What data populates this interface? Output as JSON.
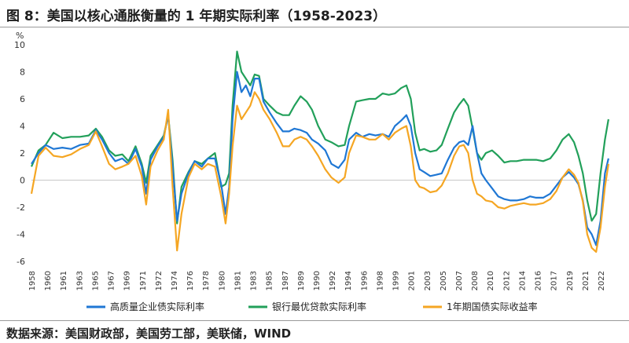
{
  "title": "图 8：美国以核心通胀衡量的 1 年期实际利率（1958-2023）",
  "source": "数据来源：美国财政部，美国劳工部，美联储，WIND",
  "chart_data": {
    "type": "line",
    "ylabel": "%",
    "ylim": [
      -6,
      10
    ],
    "yticks": [
      10,
      8,
      6,
      4,
      2,
      0,
      -2,
      -4,
      -6
    ],
    "xlim": [
      1958,
      2023.5
    ],
    "xticks": [
      "1958",
      "1960",
      "1961",
      "1963",
      "1965",
      "1967",
      "1969",
      "1971",
      "1972",
      "1974",
      "1976",
      "1978",
      "1980",
      "1981",
      "1983",
      "1985",
      "1987",
      "1989",
      "1990",
      "1992",
      "1994",
      "1996",
      "1998",
      "1999",
      "2001",
      "2003",
      "2005",
      "2007",
      "2008",
      "2010",
      "2012",
      "2014",
      "2016",
      "2017",
      "2019",
      "2021",
      "2022"
    ],
    "legend_position": "bottom",
    "series": [
      {
        "name": "高质量企业债实际利率",
        "color": "#1f77d4",
        "points": [
          [
            1958.0,
            1.2
          ],
          [
            1958.8,
            2.0
          ],
          [
            1959.6,
            2.6
          ],
          [
            1960.5,
            2.3
          ],
          [
            1961.5,
            2.4
          ],
          [
            1962.5,
            2.3
          ],
          [
            1963.5,
            2.6
          ],
          [
            1964.5,
            2.7
          ],
          [
            1965.3,
            3.7
          ],
          [
            1966.0,
            3.0
          ],
          [
            1966.8,
            2.0
          ],
          [
            1967.5,
            1.4
          ],
          [
            1968.3,
            1.6
          ],
          [
            1969.0,
            1.2
          ],
          [
            1969.8,
            2.3
          ],
          [
            1970.5,
            1.0
          ],
          [
            1971.0,
            -1.0
          ],
          [
            1971.5,
            1.5
          ],
          [
            1972.3,
            2.5
          ],
          [
            1973.0,
            3.2
          ],
          [
            1973.5,
            4.8
          ],
          [
            1974.0,
            1.0
          ],
          [
            1974.5,
            -3.0
          ],
          [
            1975.0,
            -1.0
          ],
          [
            1975.8,
            0.5
          ],
          [
            1976.5,
            1.4
          ],
          [
            1977.3,
            1.0
          ],
          [
            1978.0,
            1.6
          ],
          [
            1978.8,
            1.6
          ],
          [
            1979.5,
            -0.3
          ],
          [
            1980.0,
            -2.5
          ],
          [
            1980.4,
            -0.5
          ],
          [
            1980.8,
            4.5
          ],
          [
            1981.3,
            8.0
          ],
          [
            1981.8,
            6.5
          ],
          [
            1982.3,
            7.0
          ],
          [
            1982.8,
            6.2
          ],
          [
            1983.3,
            7.5
          ],
          [
            1983.8,
            7.5
          ],
          [
            1984.3,
            5.8
          ],
          [
            1985.0,
            5.0
          ],
          [
            1985.8,
            4.2
          ],
          [
            1986.5,
            3.6
          ],
          [
            1987.2,
            3.6
          ],
          [
            1987.8,
            3.8
          ],
          [
            1988.5,
            3.7
          ],
          [
            1989.2,
            3.5
          ],
          [
            1989.8,
            3.0
          ],
          [
            1990.5,
            2.7
          ],
          [
            1991.3,
            2.2
          ],
          [
            1992.0,
            1.2
          ],
          [
            1992.8,
            0.9
          ],
          [
            1993.5,
            1.5
          ],
          [
            1994.0,
            3.0
          ],
          [
            1994.8,
            3.5
          ],
          [
            1995.5,
            3.2
          ],
          [
            1996.3,
            3.4
          ],
          [
            1997.0,
            3.3
          ],
          [
            1997.8,
            3.4
          ],
          [
            1998.5,
            3.2
          ],
          [
            1999.2,
            4.0
          ],
          [
            1999.9,
            4.4
          ],
          [
            2000.5,
            4.8
          ],
          [
            2001.0,
            4.0
          ],
          [
            2001.5,
            2.0
          ],
          [
            2002.0,
            0.8
          ],
          [
            2002.5,
            0.6
          ],
          [
            2003.2,
            0.3
          ],
          [
            2003.9,
            0.4
          ],
          [
            2004.5,
            0.5
          ],
          [
            2005.2,
            1.5
          ],
          [
            2005.9,
            2.4
          ],
          [
            2006.5,
            2.8
          ],
          [
            2007.0,
            2.9
          ],
          [
            2007.5,
            2.6
          ],
          [
            2008.0,
            4.0
          ],
          [
            2008.5,
            2.0
          ],
          [
            2009.0,
            0.5
          ],
          [
            2009.5,
            0.0
          ],
          [
            2010.2,
            -0.6
          ],
          [
            2010.9,
            -1.2
          ],
          [
            2011.6,
            -1.4
          ],
          [
            2012.3,
            -1.5
          ],
          [
            2013.0,
            -1.5
          ],
          [
            2013.8,
            -1.4
          ],
          [
            2014.5,
            -1.2
          ],
          [
            2015.2,
            -1.3
          ],
          [
            2016.0,
            -1.3
          ],
          [
            2016.8,
            -1.0
          ],
          [
            2017.5,
            -0.4
          ],
          [
            2018.2,
            0.2
          ],
          [
            2018.9,
            0.6
          ],
          [
            2019.5,
            0.2
          ],
          [
            2020.0,
            -0.3
          ],
          [
            2020.5,
            -1.5
          ],
          [
            2021.0,
            -3.5
          ],
          [
            2021.5,
            -4.0
          ],
          [
            2022.0,
            -4.8
          ],
          [
            2022.5,
            -3.0
          ],
          [
            2023.0,
            0.5
          ],
          [
            2023.4,
            1.6
          ]
        ]
      },
      {
        "name": "银行最优贷款实际利率",
        "color": "#22a05a",
        "points": [
          [
            1958.0,
            1.0
          ],
          [
            1958.8,
            2.2
          ],
          [
            1959.6,
            2.6
          ],
          [
            1960.5,
            3.5
          ],
          [
            1961.5,
            3.1
          ],
          [
            1962.5,
            3.2
          ],
          [
            1963.5,
            3.2
          ],
          [
            1964.5,
            3.3
          ],
          [
            1965.3,
            3.8
          ],
          [
            1966.0,
            3.2
          ],
          [
            1966.8,
            2.2
          ],
          [
            1967.5,
            1.8
          ],
          [
            1968.3,
            1.9
          ],
          [
            1969.0,
            1.4
          ],
          [
            1969.8,
            2.5
          ],
          [
            1970.5,
            1.2
          ],
          [
            1971.0,
            -0.2
          ],
          [
            1971.5,
            1.8
          ],
          [
            1972.3,
            2.6
          ],
          [
            1973.0,
            3.3
          ],
          [
            1973.5,
            4.8
          ],
          [
            1974.0,
            1.5
          ],
          [
            1974.5,
            -3.2
          ],
          [
            1975.0,
            -0.5
          ],
          [
            1975.8,
            0.6
          ],
          [
            1976.5,
            1.4
          ],
          [
            1977.3,
            1.2
          ],
          [
            1978.0,
            1.6
          ],
          [
            1978.8,
            2.0
          ],
          [
            1979.5,
            -0.5
          ],
          [
            1980.0,
            -0.3
          ],
          [
            1980.4,
            0.5
          ],
          [
            1980.8,
            5.5
          ],
          [
            1981.3,
            9.5
          ],
          [
            1981.8,
            8.0
          ],
          [
            1982.3,
            7.5
          ],
          [
            1982.8,
            7.0
          ],
          [
            1983.3,
            7.8
          ],
          [
            1983.8,
            7.7
          ],
          [
            1984.3,
            6.0
          ],
          [
            1985.0,
            5.5
          ],
          [
            1985.8,
            5.0
          ],
          [
            1986.5,
            4.8
          ],
          [
            1987.2,
            4.8
          ],
          [
            1987.8,
            5.5
          ],
          [
            1988.5,
            6.2
          ],
          [
            1989.2,
            5.8
          ],
          [
            1989.8,
            5.2
          ],
          [
            1990.5,
            4.0
          ],
          [
            1991.3,
            3.0
          ],
          [
            1992.0,
            2.8
          ],
          [
            1992.8,
            2.5
          ],
          [
            1993.5,
            2.6
          ],
          [
            1994.0,
            4.0
          ],
          [
            1994.8,
            5.8
          ],
          [
            1995.5,
            5.9
          ],
          [
            1996.3,
            6.0
          ],
          [
            1997.0,
            6.0
          ],
          [
            1997.8,
            6.4
          ],
          [
            1998.5,
            6.3
          ],
          [
            1999.2,
            6.4
          ],
          [
            1999.9,
            6.8
          ],
          [
            2000.5,
            7.0
          ],
          [
            2001.0,
            6.0
          ],
          [
            2001.5,
            3.5
          ],
          [
            2002.0,
            2.2
          ],
          [
            2002.5,
            2.3
          ],
          [
            2003.2,
            2.1
          ],
          [
            2003.9,
            2.2
          ],
          [
            2004.5,
            2.6
          ],
          [
            2005.2,
            3.8
          ],
          [
            2005.9,
            5.0
          ],
          [
            2006.5,
            5.6
          ],
          [
            2007.0,
            6.0
          ],
          [
            2007.5,
            5.5
          ],
          [
            2008.0,
            3.8
          ],
          [
            2008.5,
            2.0
          ],
          [
            2009.0,
            1.5
          ],
          [
            2009.5,
            2.0
          ],
          [
            2010.2,
            2.2
          ],
          [
            2010.9,
            1.8
          ],
          [
            2011.6,
            1.3
          ],
          [
            2012.3,
            1.4
          ],
          [
            2013.0,
            1.4
          ],
          [
            2013.8,
            1.5
          ],
          [
            2014.5,
            1.5
          ],
          [
            2015.2,
            1.5
          ],
          [
            2016.0,
            1.4
          ],
          [
            2016.8,
            1.6
          ],
          [
            2017.5,
            2.2
          ],
          [
            2018.2,
            3.0
          ],
          [
            2018.9,
            3.4
          ],
          [
            2019.5,
            2.8
          ],
          [
            2020.0,
            1.8
          ],
          [
            2020.5,
            0.5
          ],
          [
            2021.0,
            -1.5
          ],
          [
            2021.5,
            -3.0
          ],
          [
            2022.0,
            -2.5
          ],
          [
            2022.5,
            0.5
          ],
          [
            2023.0,
            3.0
          ],
          [
            2023.4,
            4.5
          ]
        ]
      },
      {
        "name": "1年期国债实际收益率",
        "color": "#f5a623",
        "points": [
          [
            1958.0,
            -1.0
          ],
          [
            1958.8,
            1.8
          ],
          [
            1959.6,
            2.4
          ],
          [
            1960.5,
            1.8
          ],
          [
            1961.5,
            1.7
          ],
          [
            1962.5,
            1.9
          ],
          [
            1963.5,
            2.3
          ],
          [
            1964.5,
            2.6
          ],
          [
            1965.3,
            3.6
          ],
          [
            1966.0,
            2.5
          ],
          [
            1966.8,
            1.2
          ],
          [
            1967.5,
            0.8
          ],
          [
            1968.3,
            1.0
          ],
          [
            1969.0,
            1.2
          ],
          [
            1969.8,
            1.8
          ],
          [
            1970.5,
            0.3
          ],
          [
            1971.0,
            -1.8
          ],
          [
            1971.5,
            1.0
          ],
          [
            1972.3,
            2.2
          ],
          [
            1973.0,
            3.0
          ],
          [
            1973.5,
            5.2
          ],
          [
            1974.0,
            -0.5
          ],
          [
            1974.5,
            -5.2
          ],
          [
            1975.0,
            -2.5
          ],
          [
            1975.8,
            0.2
          ],
          [
            1976.5,
            1.2
          ],
          [
            1977.3,
            0.8
          ],
          [
            1978.0,
            1.2
          ],
          [
            1978.8,
            1.0
          ],
          [
            1979.5,
            -1.2
          ],
          [
            1980.0,
            -3.2
          ],
          [
            1980.4,
            -1.0
          ],
          [
            1980.8,
            2.5
          ],
          [
            1981.3,
            5.5
          ],
          [
            1981.8,
            4.5
          ],
          [
            1982.3,
            5.0
          ],
          [
            1982.8,
            5.5
          ],
          [
            1983.3,
            6.5
          ],
          [
            1983.8,
            6.0
          ],
          [
            1984.3,
            5.2
          ],
          [
            1985.0,
            4.5
          ],
          [
            1985.8,
            3.5
          ],
          [
            1986.5,
            2.5
          ],
          [
            1987.2,
            2.5
          ],
          [
            1987.8,
            3.0
          ],
          [
            1988.5,
            3.2
          ],
          [
            1989.2,
            3.0
          ],
          [
            1989.8,
            2.5
          ],
          [
            1990.5,
            1.8
          ],
          [
            1991.3,
            0.8
          ],
          [
            1992.0,
            0.2
          ],
          [
            1992.8,
            -0.2
          ],
          [
            1993.5,
            0.2
          ],
          [
            1994.0,
            2.0
          ],
          [
            1994.8,
            3.3
          ],
          [
            1995.5,
            3.2
          ],
          [
            1996.3,
            3.0
          ],
          [
            1997.0,
            3.0
          ],
          [
            1997.8,
            3.4
          ],
          [
            1998.5,
            3.0
          ],
          [
            1999.2,
            3.5
          ],
          [
            1999.9,
            3.8
          ],
          [
            2000.5,
            4.0
          ],
          [
            2001.0,
            2.5
          ],
          [
            2001.5,
            0.0
          ],
          [
            2002.0,
            -0.5
          ],
          [
            2002.5,
            -0.6
          ],
          [
            2003.2,
            -0.9
          ],
          [
            2003.9,
            -0.8
          ],
          [
            2004.5,
            -0.4
          ],
          [
            2005.2,
            0.5
          ],
          [
            2005.9,
            1.8
          ],
          [
            2006.5,
            2.5
          ],
          [
            2007.0,
            2.6
          ],
          [
            2007.5,
            2.0
          ],
          [
            2008.0,
            0.0
          ],
          [
            2008.5,
            -1.0
          ],
          [
            2009.0,
            -1.2
          ],
          [
            2009.5,
            -1.5
          ],
          [
            2010.2,
            -1.6
          ],
          [
            2010.9,
            -2.0
          ],
          [
            2011.6,
            -2.1
          ],
          [
            2012.3,
            -1.9
          ],
          [
            2013.0,
            -1.8
          ],
          [
            2013.8,
            -1.7
          ],
          [
            2014.5,
            -1.8
          ],
          [
            2015.2,
            -1.8
          ],
          [
            2016.0,
            -1.7
          ],
          [
            2016.8,
            -1.4
          ],
          [
            2017.5,
            -0.8
          ],
          [
            2018.2,
            0.2
          ],
          [
            2018.9,
            0.8
          ],
          [
            2019.5,
            0.4
          ],
          [
            2020.0,
            -0.2
          ],
          [
            2020.5,
            -1.6
          ],
          [
            2021.0,
            -4.0
          ],
          [
            2021.5,
            -5.0
          ],
          [
            2022.0,
            -5.3
          ],
          [
            2022.5,
            -3.5
          ],
          [
            2023.0,
            -0.5
          ],
          [
            2023.4,
            1.2
          ]
        ]
      }
    ]
  }
}
